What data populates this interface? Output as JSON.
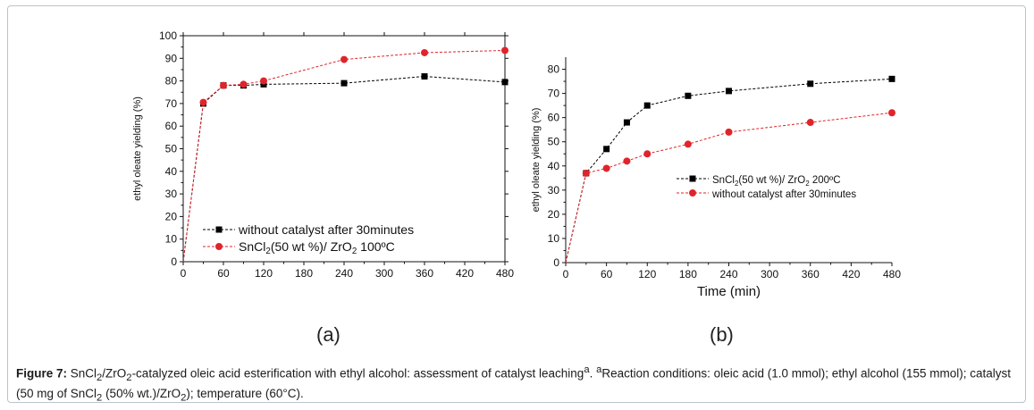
{
  "chart_data": [
    {
      "type": "line",
      "panel_label": "(a)",
      "ylabel": "ethyl oleate yielding (%)",
      "xlabel": "",
      "xlim": [
        0,
        480
      ],
      "ylim": [
        0,
        100
      ],
      "xticks": [
        0,
        60,
        120,
        180,
        240,
        300,
        360,
        420,
        480
      ],
      "yticks": [
        0,
        10,
        20,
        30,
        40,
        50,
        60,
        70,
        80,
        90,
        100
      ],
      "legend_placement": "bottom-left",
      "series": [
        {
          "name_main": "without catalyst after 30minutes",
          "name_sub": "",
          "name_tail": "",
          "name_sub2": "",
          "name_tail2": "",
          "marker": "square",
          "color": "#000000",
          "x": [
            0,
            30,
            60,
            90,
            120,
            240,
            360,
            480
          ],
          "y": [
            0,
            70,
            78,
            78,
            78.5,
            79,
            82,
            79.5
          ]
        },
        {
          "name_main": "SnCl",
          "name_sub": "2",
          "name_tail": "(50 wt %)/ ZrO",
          "name_sub2": "2",
          "name_tail2": " 100ºC",
          "marker": "circle",
          "color": "#e0242b",
          "x": [
            0,
            30,
            60,
            90,
            120,
            240,
            360,
            480
          ],
          "y": [
            0,
            70.5,
            78,
            78.5,
            80,
            89.5,
            92.5,
            93.5
          ]
        }
      ]
    },
    {
      "type": "line",
      "panel_label": "(b)",
      "ylabel": "ethyl oleate yielding (%)",
      "xlabel": "Time (min)",
      "xlim": [
        0,
        480
      ],
      "ylim": [
        0,
        85
      ],
      "xticks": [
        0,
        60,
        120,
        180,
        240,
        300,
        360,
        420,
        480
      ],
      "yticks": [
        0,
        10,
        20,
        30,
        40,
        50,
        60,
        70,
        80
      ],
      "legend_placement": "center-left",
      "series": [
        {
          "name_main": "SnCl",
          "name_sub": "2",
          "name_tail": "(50 wt %)/ ZrO",
          "name_sub2": "2",
          "name_tail2": " 200ºC",
          "marker": "square",
          "color": "#000000",
          "x": [
            0,
            30,
            60,
            90,
            120,
            180,
            240,
            360,
            480
          ],
          "y": [
            0,
            37,
            47,
            58,
            65,
            69,
            71,
            74,
            76
          ]
        },
        {
          "name_main": "without catalyst after 30minutes",
          "name_sub": "",
          "name_tail": "",
          "name_sub2": "",
          "name_tail2": "",
          "marker": "circle",
          "color": "#e0242b",
          "x": [
            0,
            30,
            60,
            90,
            120,
            180,
            240,
            360,
            480
          ],
          "y": [
            0,
            37,
            39,
            42,
            45,
            49,
            54,
            58,
            62
          ]
        }
      ]
    }
  ],
  "caption": {
    "label": "Figure 7:",
    "p1": " SnCl",
    "s1": "2",
    "p2": "/ZrO",
    "s2": "2",
    "p3": "-catalyzed oleic acid esterification with ethyl alcohol: assessment of catalyst leaching",
    "sup1": "a",
    "p4": ". ",
    "sup2": "a",
    "p5": "Reaction conditions: oleic acid (1.0 mmol); ethyl alcohol (155 mmol); catalyst (50 mg of SnCl",
    "s3": "2",
    "p6": " (50% wt.)/ZrO",
    "s4": "2",
    "p7": "); temperature (60°C)."
  }
}
